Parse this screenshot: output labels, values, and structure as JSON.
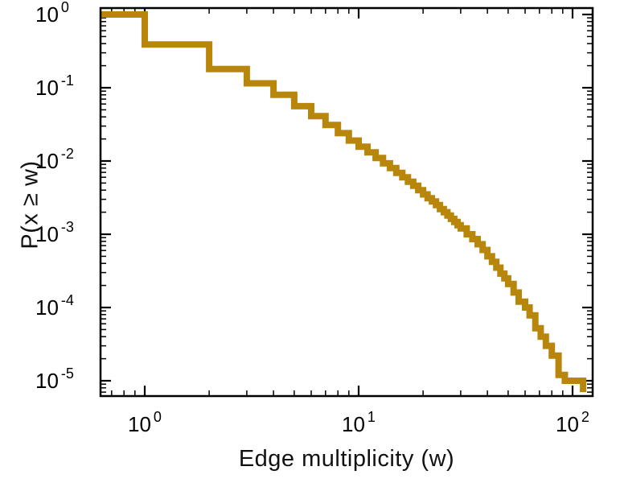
{
  "figure": {
    "background": "#ffffff",
    "frame_color": "#000000",
    "text_color": "#111111"
  },
  "chart_data": {
    "type": "line",
    "subtype": "ccdf-step",
    "title": "",
    "xlabel": "Edge multiplicity (w)",
    "ylabel": "P(x ≥ w)",
    "xscale": "log",
    "yscale": "log",
    "xlim": [
      0.62,
      124
    ],
    "ylim": [
      6.2e-06,
      1.22
    ],
    "grid": false,
    "legend": false,
    "line_color": "#b8860b",
    "line_width": 8,
    "frame_color": "#000000",
    "xticks": [
      {
        "value": 1,
        "label": "10",
        "exponent": "0"
      },
      {
        "value": 10,
        "label": "10",
        "exponent": "1"
      },
      {
        "value": 100,
        "label": "10",
        "exponent": "2"
      }
    ],
    "yticks": [
      {
        "value": 1,
        "label": "10",
        "exponent": "0"
      },
      {
        "value": 0.1,
        "label": "10",
        "exponent": "-1"
      },
      {
        "value": 0.01,
        "label": "10",
        "exponent": "-2"
      },
      {
        "value": 0.001,
        "label": "10",
        "exponent": "-3"
      },
      {
        "value": 0.0001,
        "label": "10",
        "exponent": "-4"
      },
      {
        "value": 1e-05,
        "label": "10",
        "exponent": "-5"
      }
    ],
    "start_value": 1.0,
    "steps": [
      [
        1,
        0.39
      ],
      [
        2,
        0.18
      ],
      [
        3,
        0.115
      ],
      [
        4,
        0.08
      ],
      [
        5,
        0.056
      ],
      [
        6,
        0.041
      ],
      [
        7,
        0.031
      ],
      [
        8,
        0.024
      ],
      [
        9,
        0.019
      ],
      [
        10,
        0.0157
      ],
      [
        11,
        0.0131
      ],
      [
        12,
        0.011
      ],
      [
        13,
        0.0093
      ],
      [
        14,
        0.008
      ],
      [
        15,
        0.0069
      ],
      [
        16,
        0.006
      ],
      [
        17,
        0.0052
      ],
      [
        18,
        0.0046
      ],
      [
        19,
        0.004
      ],
      [
        20,
        0.0035
      ],
      [
        21,
        0.0031
      ],
      [
        22,
        0.0028
      ],
      [
        23,
        0.0025
      ],
      [
        24,
        0.0022
      ],
      [
        25,
        0.002
      ],
      [
        26,
        0.0018
      ],
      [
        27,
        0.00162
      ],
      [
        28,
        0.00147
      ],
      [
        29,
        0.00133
      ],
      [
        30,
        0.0012
      ],
      [
        32,
        0.001
      ],
      [
        34,
        0.00086
      ],
      [
        36,
        0.00073
      ],
      [
        38,
        0.00061
      ],
      [
        40,
        0.0005
      ],
      [
        42,
        0.00042
      ],
      [
        44,
        0.00035
      ],
      [
        46,
        0.00029
      ],
      [
        48,
        0.00025
      ],
      [
        50,
        0.00021
      ],
      [
        53,
        0.00016
      ],
      [
        56,
        0.00012
      ],
      [
        60,
        0.0001
      ],
      [
        63,
        7.8e-05
      ],
      [
        67,
        5.2e-05
      ],
      [
        71,
        4e-05
      ],
      [
        75,
        3e-05
      ],
      [
        80,
        2.2e-05
      ],
      [
        86,
        1.2e-05
      ],
      [
        92,
        1e-05
      ],
      [
        112,
        7e-06
      ]
    ]
  }
}
